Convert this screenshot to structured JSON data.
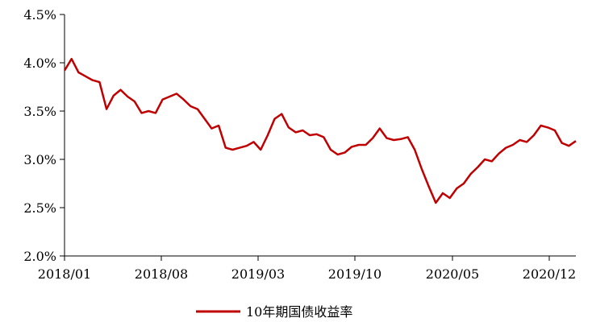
{
  "chart_data": {
    "type": "line",
    "title": "",
    "xlabel": "",
    "ylabel": "",
    "ylim": [
      2.0,
      4.5
    ],
    "y_ticks": [
      "2.0%",
      "2.5%",
      "3.0%",
      "3.5%",
      "4.0%",
      "4.5%"
    ],
    "x_ticks": [
      "2018/01",
      "2018/08",
      "2019/03",
      "2019/10",
      "2020/05",
      "2020/12"
    ],
    "grid": false,
    "legend_position": "bottom-center",
    "series": [
      {
        "name": "10年期国债收益率",
        "color": "#C00000",
        "x": [
          "2018/01",
          "2018/01",
          "2018/02",
          "2018/02",
          "2018/03",
          "2018/03",
          "2018/04",
          "2018/04",
          "2018/05",
          "2018/05",
          "2018/06",
          "2018/06",
          "2018/07",
          "2018/07",
          "2018/08",
          "2018/08",
          "2018/09",
          "2018/09",
          "2018/10",
          "2018/10",
          "2018/11",
          "2018/11",
          "2018/12",
          "2018/12",
          "2019/01",
          "2019/01",
          "2019/02",
          "2019/02",
          "2019/03",
          "2019/03",
          "2019/04",
          "2019/04",
          "2019/05",
          "2019/05",
          "2019/06",
          "2019/06",
          "2019/07",
          "2019/07",
          "2019/08",
          "2019/08",
          "2019/09",
          "2019/09",
          "2019/10",
          "2019/10",
          "2019/11",
          "2019/11",
          "2019/12",
          "2019/12",
          "2020/01",
          "2020/01",
          "2020/02",
          "2020/02",
          "2020/03",
          "2020/03",
          "2020/04",
          "2020/04",
          "2020/05",
          "2020/05",
          "2020/06",
          "2020/06",
          "2020/07",
          "2020/07",
          "2020/08",
          "2020/08",
          "2020/09",
          "2020/09",
          "2020/10",
          "2020/10",
          "2020/11",
          "2020/11",
          "2020/12",
          "2020/12",
          "2021/01",
          "2021/01"
        ],
        "values": [
          3.92,
          4.04,
          3.9,
          3.86,
          3.82,
          3.8,
          3.52,
          3.66,
          3.72,
          3.65,
          3.6,
          3.48,
          3.5,
          3.48,
          3.62,
          3.65,
          3.68,
          3.62,
          3.55,
          3.52,
          3.42,
          3.32,
          3.35,
          3.12,
          3.1,
          3.12,
          3.14,
          3.18,
          3.1,
          3.25,
          3.42,
          3.47,
          3.33,
          3.28,
          3.3,
          3.25,
          3.26,
          3.23,
          3.1,
          3.05,
          3.07,
          3.13,
          3.15,
          3.15,
          3.22,
          3.32,
          3.22,
          3.2,
          3.21,
          3.23,
          3.1,
          2.9,
          2.72,
          2.55,
          2.65,
          2.6,
          2.7,
          2.75,
          2.85,
          2.92,
          3.0,
          2.98,
          3.06,
          3.12,
          3.15,
          3.2,
          3.18,
          3.25,
          3.35,
          3.33,
          3.3,
          3.17,
          3.14,
          3.19
        ]
      }
    ]
  }
}
